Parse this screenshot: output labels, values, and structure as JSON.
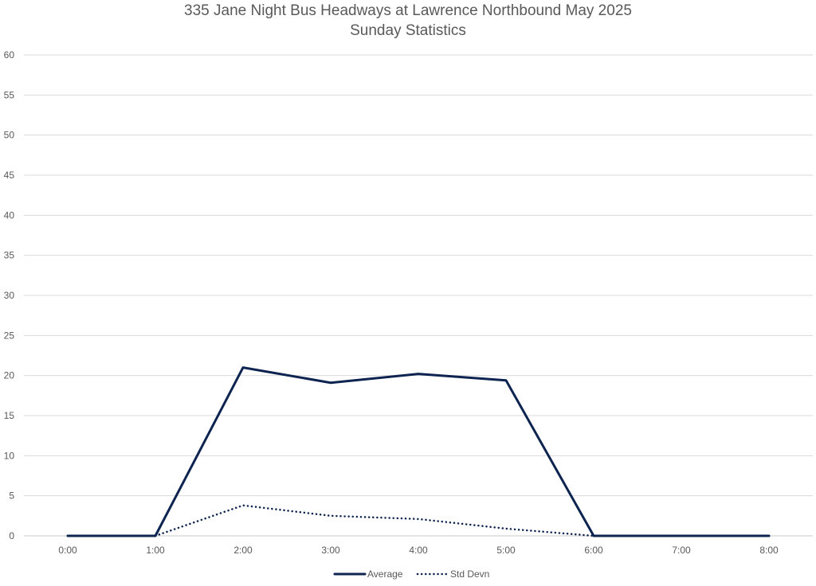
{
  "chart_data": {
    "type": "line",
    "title": "335 Jane Night Bus Headways at Lawrence Northbound May 2025",
    "subtitle": "Sunday Statistics",
    "xlabel": "",
    "ylabel": "",
    "categories": [
      "0:00",
      "1:00",
      "2:00",
      "3:00",
      "4:00",
      "5:00",
      "6:00",
      "7:00",
      "8:00"
    ],
    "ylim": [
      0,
      60
    ],
    "yticks": [
      0,
      5,
      10,
      15,
      20,
      25,
      30,
      35,
      40,
      45,
      50,
      55,
      60
    ],
    "grid": true,
    "legend_position": "bottom",
    "series": [
      {
        "name": "Average",
        "style": "solid",
        "color": "#0d2350",
        "values": [
          0,
          0,
          21.0,
          19.1,
          20.2,
          19.4,
          0,
          0,
          0
        ]
      },
      {
        "name": "Std Devn",
        "style": "dotted",
        "color": "#0d2350",
        "values": [
          null,
          0,
          3.8,
          2.5,
          2.1,
          0.9,
          0,
          null,
          null
        ]
      }
    ]
  }
}
